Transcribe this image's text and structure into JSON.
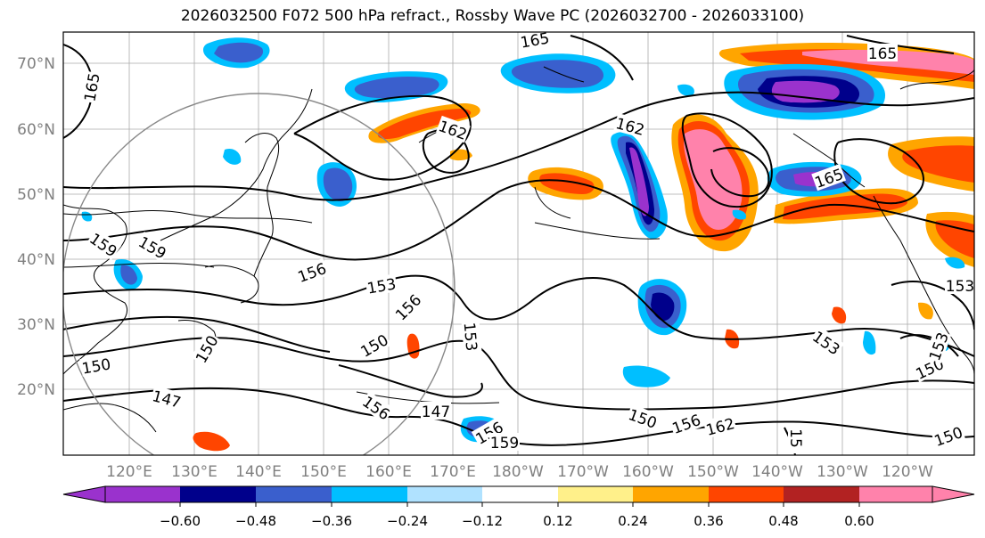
{
  "title": "2026032500 F072 500 hPa refract., Rossby Wave PC (2026032700 - 2026033100)",
  "map": {
    "lat_labels": [
      "70°N",
      "60°N",
      "50°N",
      "40°N",
      "30°N",
      "20°N"
    ],
    "lon_labels": [
      "120°E",
      "130°E",
      "140°E",
      "150°E",
      "160°E",
      "170°E",
      "180°W",
      "170°W",
      "160°W",
      "150°W",
      "140°W",
      "130°W",
      "120°W"
    ],
    "contour_labels": [
      "165",
      "165",
      "165",
      "162",
      "162",
      "165",
      "159",
      "159",
      "156",
      "153",
      "156",
      "153",
      "150",
      "150",
      "150",
      "147",
      "156",
      "147",
      "156",
      "159",
      "150",
      "156",
      "162",
      "153",
      "153",
      "150",
      "153",
      "150",
      "15"
    ]
  },
  "colorbar": {
    "tick_labels": [
      "−0.60",
      "−0.48",
      "−0.36",
      "−0.24",
      "−0.12",
      "0.12",
      "0.24",
      "0.36",
      "0.48",
      "0.60"
    ],
    "colors": [
      "#9a32cd",
      "#00008b",
      "#3a5fcd",
      "#00bfff",
      "#b0e2ff",
      "#ffffff",
      "#fff08a",
      "#ffa500",
      "#ff4500",
      "#b22222",
      "#ff82ab"
    ]
  }
}
